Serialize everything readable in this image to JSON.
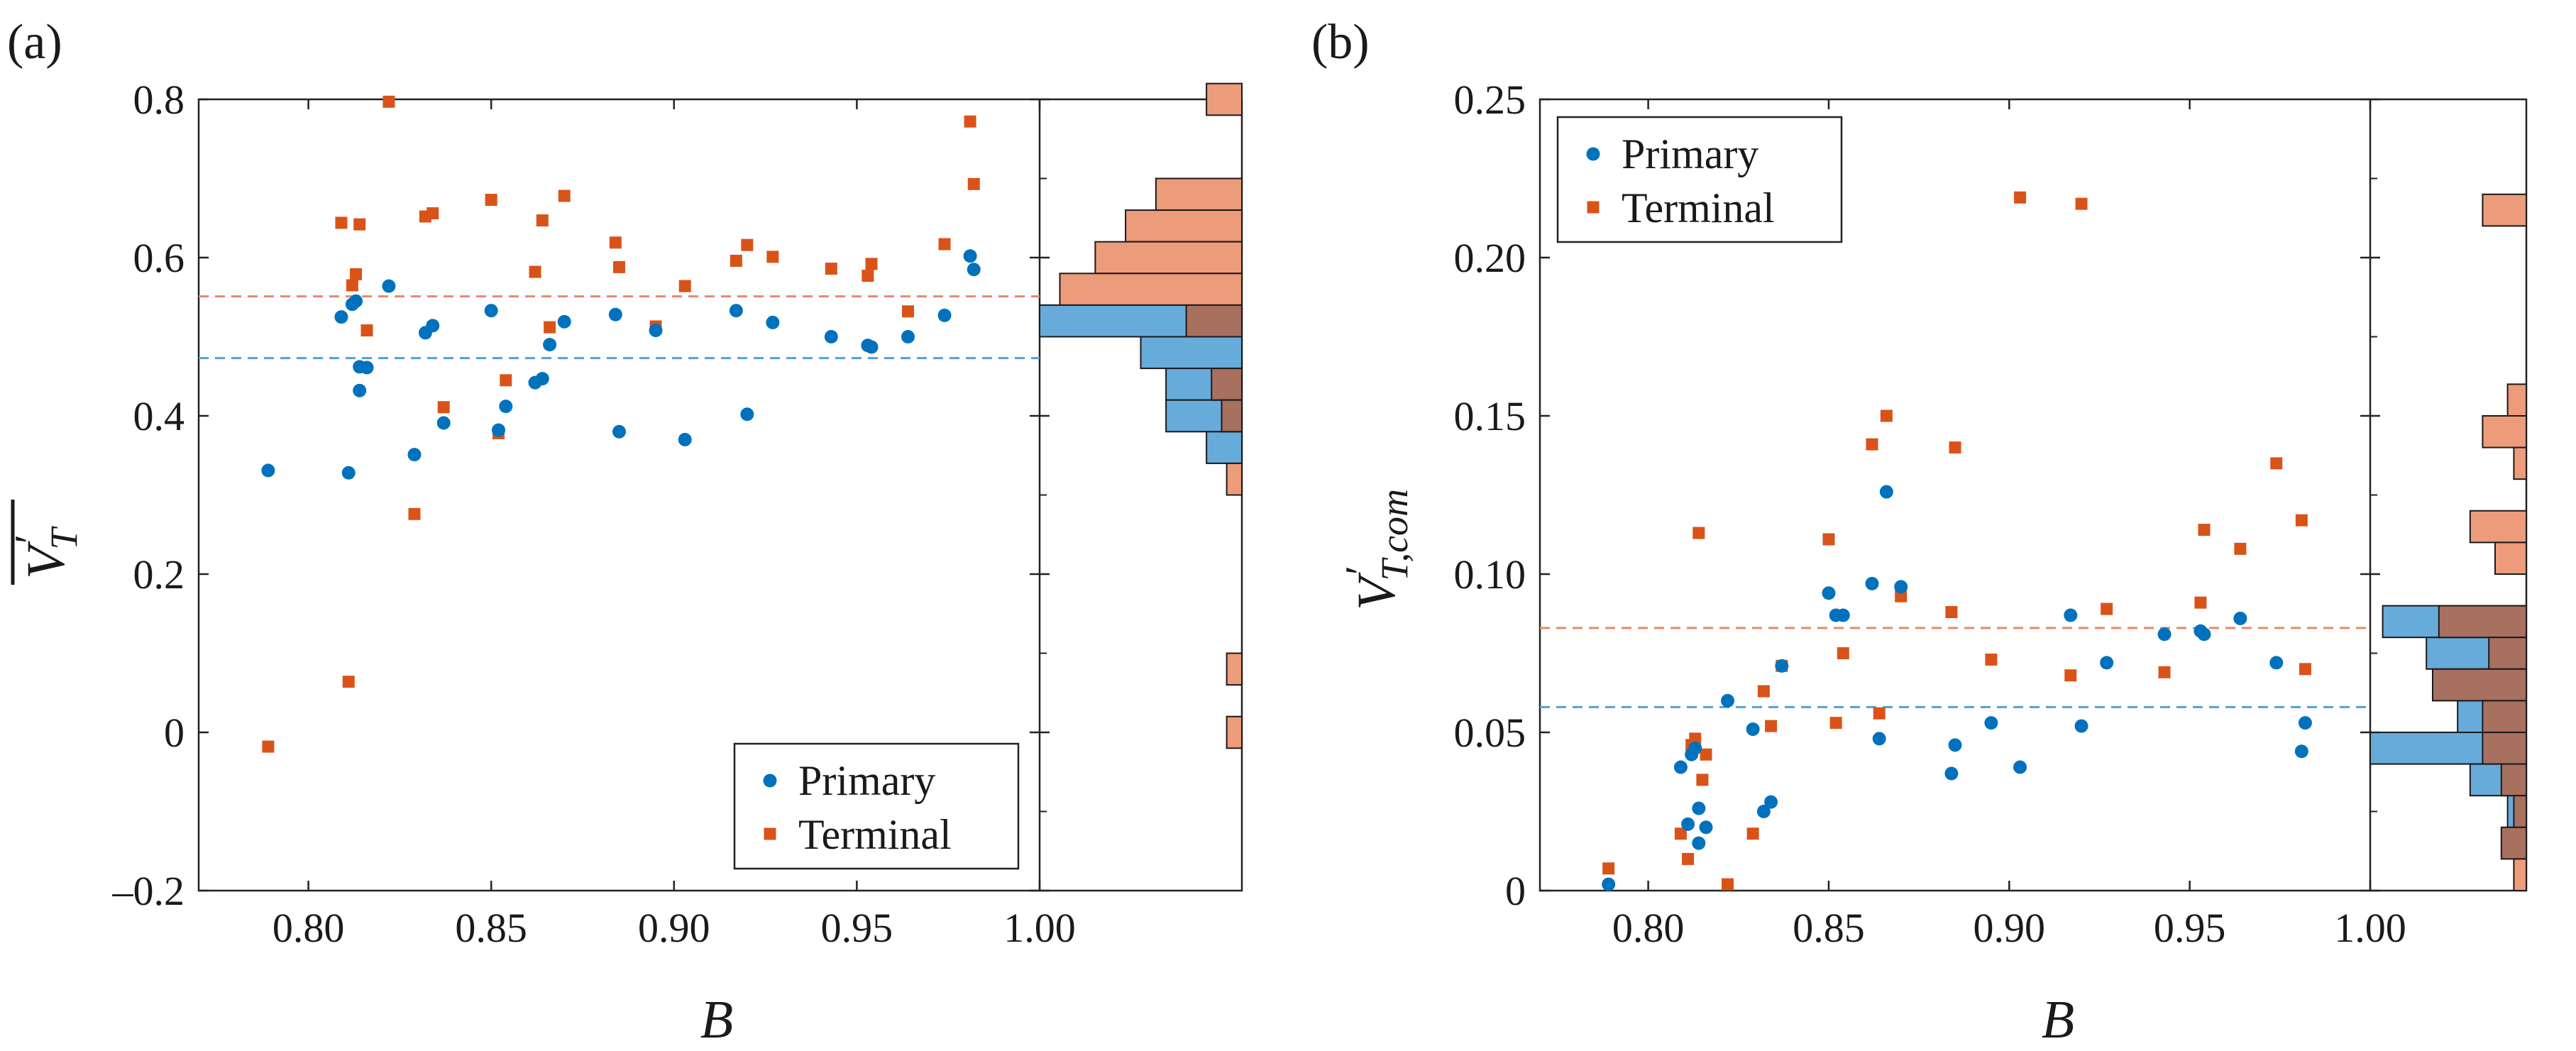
{
  "colors": {
    "primary": "#0072BD",
    "terminal": "#D95319",
    "primary_hist": "#5FA7D9",
    "terminal_hist": "#EC9C7A",
    "overlap_hist": "#A8705F",
    "primary_mean_line": "#4FA3D6",
    "terminal_mean_line": "#E8896A"
  },
  "legend": {
    "primary": "Primary",
    "terminal": "Terminal"
  },
  "chart_data": [
    {
      "type": "scatter",
      "panel_label": "(a)",
      "title": "",
      "xlabel": "B",
      "ylabel": "V′T (overbar)",
      "ylabel_main": "V",
      "ylabel_sub": "T",
      "ylabel_prime": "′",
      "xlim": [
        0.77,
        1.0
      ],
      "ylim": [
        -0.2,
        0.8
      ],
      "xticks": [
        0.8,
        0.85,
        0.9,
        0.95,
        1.0
      ],
      "xtick_labels": [
        "0.80",
        "0.85",
        "0.90",
        "0.95",
        "1.00"
      ],
      "yticks": [
        -0.2,
        0,
        0.2,
        0.4,
        0.6,
        0.8
      ],
      "ytick_labels": [
        "–0.2",
        "0",
        "0.2",
        "0.4",
        "0.6",
        "0.8"
      ],
      "legend_position": "bottom-right",
      "series": [
        {
          "name": "Primary",
          "marker": "circle",
          "mean": 0.473,
          "points": [
            [
              0.789,
              0.331
            ],
            [
              0.809,
              0.525
            ],
            [
              0.811,
              0.328
            ],
            [
              0.812,
              0.541
            ],
            [
              0.813,
              0.545
            ],
            [
              0.814,
              0.432
            ],
            [
              0.814,
              0.462
            ],
            [
              0.816,
              0.461
            ],
            [
              0.822,
              0.564
            ],
            [
              0.829,
              0.351
            ],
            [
              0.832,
              0.505
            ],
            [
              0.834,
              0.514
            ],
            [
              0.837,
              0.391
            ],
            [
              0.85,
              0.533
            ],
            [
              0.852,
              0.382
            ],
            [
              0.854,
              0.412
            ],
            [
              0.862,
              0.442
            ],
            [
              0.864,
              0.447
            ],
            [
              0.866,
              0.49
            ],
            [
              0.87,
              0.519
            ],
            [
              0.884,
              0.528
            ],
            [
              0.885,
              0.38
            ],
            [
              0.895,
              0.508
            ],
            [
              0.903,
              0.37
            ],
            [
              0.917,
              0.533
            ],
            [
              0.92,
              0.402
            ],
            [
              0.927,
              0.518
            ],
            [
              0.943,
              0.5
            ],
            [
              0.953,
              0.489
            ],
            [
              0.954,
              0.487
            ],
            [
              0.964,
              0.5
            ],
            [
              0.974,
              0.527
            ],
            [
              0.981,
              0.602
            ],
            [
              0.982,
              0.585
            ]
          ]
        },
        {
          "name": "Terminal",
          "marker": "square",
          "mean": 0.551,
          "points": [
            [
              0.789,
              -0.018
            ],
            [
              0.809,
              0.644
            ],
            [
              0.811,
              0.064
            ],
            [
              0.812,
              0.565
            ],
            [
              0.813,
              0.579
            ],
            [
              0.814,
              0.642
            ],
            [
              0.816,
              0.508
            ],
            [
              0.822,
              0.797
            ],
            [
              0.829,
              0.276
            ],
            [
              0.832,
              0.652
            ],
            [
              0.834,
              0.656
            ],
            [
              0.837,
              0.411
            ],
            [
              0.85,
              0.673
            ],
            [
              0.852,
              0.378
            ],
            [
              0.854,
              0.445
            ],
            [
              0.862,
              0.582
            ],
            [
              0.864,
              0.647
            ],
            [
              0.866,
              0.512
            ],
            [
              0.87,
              0.678
            ],
            [
              0.884,
              0.619
            ],
            [
              0.885,
              0.588
            ],
            [
              0.895,
              0.513
            ],
            [
              0.903,
              0.564
            ],
            [
              0.917,
              0.596
            ],
            [
              0.92,
              0.616
            ],
            [
              0.927,
              0.601
            ],
            [
              0.943,
              0.586
            ],
            [
              0.953,
              0.577
            ],
            [
              0.954,
              0.592
            ],
            [
              0.964,
              0.532
            ],
            [
              0.974,
              0.617
            ],
            [
              0.981,
              0.772
            ],
            [
              0.982,
              0.693
            ]
          ]
        }
      ],
      "histogram": {
        "orientation": "horizontal",
        "bin_width": 0.04,
        "primary": [
          [
            0.5,
            4
          ],
          [
            0.46,
            2
          ],
          [
            0.42,
            1.5
          ],
          [
            0.38,
            1.5
          ],
          [
            0.34,
            0.7
          ]
        ],
        "terminal": [
          [
            0.78,
            0.7
          ],
          [
            0.66,
            1.7
          ],
          [
            0.62,
            2.3
          ],
          [
            0.58,
            2.9
          ],
          [
            0.54,
            3.6
          ],
          [
            0.5,
            1.1
          ],
          [
            0.42,
            0.6
          ],
          [
            0.38,
            0.4
          ],
          [
            0.3,
            0.3
          ],
          [
            0.06,
            0.3
          ],
          [
            -0.02,
            0.3
          ]
        ]
      }
    },
    {
      "type": "scatter",
      "panel_label": "(b)",
      "title": "",
      "xlabel": "B",
      "ylabel": "V′T,com",
      "ylabel_main": "V",
      "ylabel_sub": "T,com",
      "ylabel_prime": "′",
      "xlim": [
        0.77,
        1.0
      ],
      "ylim": [
        0,
        0.25
      ],
      "xticks": [
        0.8,
        0.85,
        0.9,
        0.95,
        1.0
      ],
      "xtick_labels": [
        "0.80",
        "0.85",
        "0.90",
        "0.95",
        "1.00"
      ],
      "yticks": [
        0,
        0.05,
        0.1,
        0.15,
        0.2,
        0.25
      ],
      "ytick_labels": [
        "0",
        "0.05",
        "0.10",
        "0.15",
        "0.20",
        "0.25"
      ],
      "legend_position": "top-left",
      "series": [
        {
          "name": "Primary",
          "marker": "circle",
          "mean": 0.058,
          "points": [
            [
              0.789,
              0.002
            ],
            [
              0.809,
              0.039
            ],
            [
              0.811,
              0.021
            ],
            [
              0.812,
              0.043
            ],
            [
              0.813,
              0.045
            ],
            [
              0.814,
              0.026
            ],
            [
              0.814,
              0.015
            ],
            [
              0.816,
              0.02
            ],
            [
              0.822,
              0.06
            ],
            [
              0.829,
              0.051
            ],
            [
              0.832,
              0.025
            ],
            [
              0.834,
              0.028
            ],
            [
              0.837,
              0.071
            ],
            [
              0.85,
              0.094
            ],
            [
              0.852,
              0.087
            ],
            [
              0.854,
              0.087
            ],
            [
              0.862,
              0.097
            ],
            [
              0.864,
              0.048
            ],
            [
              0.866,
              0.126
            ],
            [
              0.87,
              0.096
            ],
            [
              0.884,
              0.037
            ],
            [
              0.885,
              0.046
            ],
            [
              0.895,
              0.053
            ],
            [
              0.903,
              0.039
            ],
            [
              0.917,
              0.087
            ],
            [
              0.92,
              0.052
            ],
            [
              0.927,
              0.072
            ],
            [
              0.943,
              0.081
            ],
            [
              0.953,
              0.082
            ],
            [
              0.954,
              0.081
            ],
            [
              0.964,
              0.086
            ],
            [
              0.974,
              0.072
            ],
            [
              0.981,
              0.044
            ],
            [
              0.982,
              0.053
            ]
          ]
        },
        {
          "name": "Terminal",
          "marker": "square",
          "mean": 0.083,
          "points": [
            [
              0.789,
              0.007
            ],
            [
              0.809,
              0.018
            ],
            [
              0.811,
              0.01
            ],
            [
              0.812,
              0.046
            ],
            [
              0.813,
              0.048
            ],
            [
              0.814,
              0.113
            ],
            [
              0.815,
              0.035
            ],
            [
              0.816,
              0.043
            ],
            [
              0.822,
              0.002
            ],
            [
              0.829,
              0.018
            ],
            [
              0.832,
              0.063
            ],
            [
              0.834,
              0.052
            ],
            [
              0.837,
              0.071
            ],
            [
              0.85,
              0.111
            ],
            [
              0.852,
              0.053
            ],
            [
              0.854,
              0.075
            ],
            [
              0.862,
              0.141
            ],
            [
              0.864,
              0.056
            ],
            [
              0.866,
              0.15
            ],
            [
              0.87,
              0.093
            ],
            [
              0.884,
              0.088
            ],
            [
              0.885,
              0.14
            ],
            [
              0.895,
              0.073
            ],
            [
              0.903,
              0.219
            ],
            [
              0.917,
              0.068
            ],
            [
              0.92,
              0.217
            ],
            [
              0.927,
              0.089
            ],
            [
              0.943,
              0.069
            ],
            [
              0.953,
              0.091
            ],
            [
              0.954,
              0.114
            ],
            [
              0.964,
              0.108
            ],
            [
              0.974,
              0.135
            ],
            [
              0.981,
              0.117
            ],
            [
              0.982,
              0.07
            ]
          ]
        }
      ],
      "histogram": {
        "orientation": "horizontal",
        "bin_width": 0.01,
        "primary": [
          [
            0.08,
            2.3
          ],
          [
            0.07,
            1.6
          ],
          [
            0.06,
            0.8
          ],
          [
            0.05,
            1.1
          ],
          [
            0.04,
            2.5
          ],
          [
            0.03,
            0.9
          ],
          [
            0.02,
            0.3
          ],
          [
            0.01,
            0.2
          ]
        ],
        "terminal": [
          [
            0.21,
            0.7
          ],
          [
            0.15,
            0.3
          ],
          [
            0.14,
            0.7
          ],
          [
            0.13,
            0.2
          ],
          [
            0.11,
            0.9
          ],
          [
            0.1,
            0.5
          ],
          [
            0.08,
            1.4
          ],
          [
            0.07,
            0.6
          ],
          [
            0.06,
            1.5
          ],
          [
            0.05,
            0.7
          ],
          [
            0.04,
            0.7
          ],
          [
            0.03,
            0.4
          ],
          [
            0.02,
            0.2
          ],
          [
            0.01,
            0.4
          ],
          [
            0.0,
            0.2
          ]
        ]
      }
    }
  ]
}
